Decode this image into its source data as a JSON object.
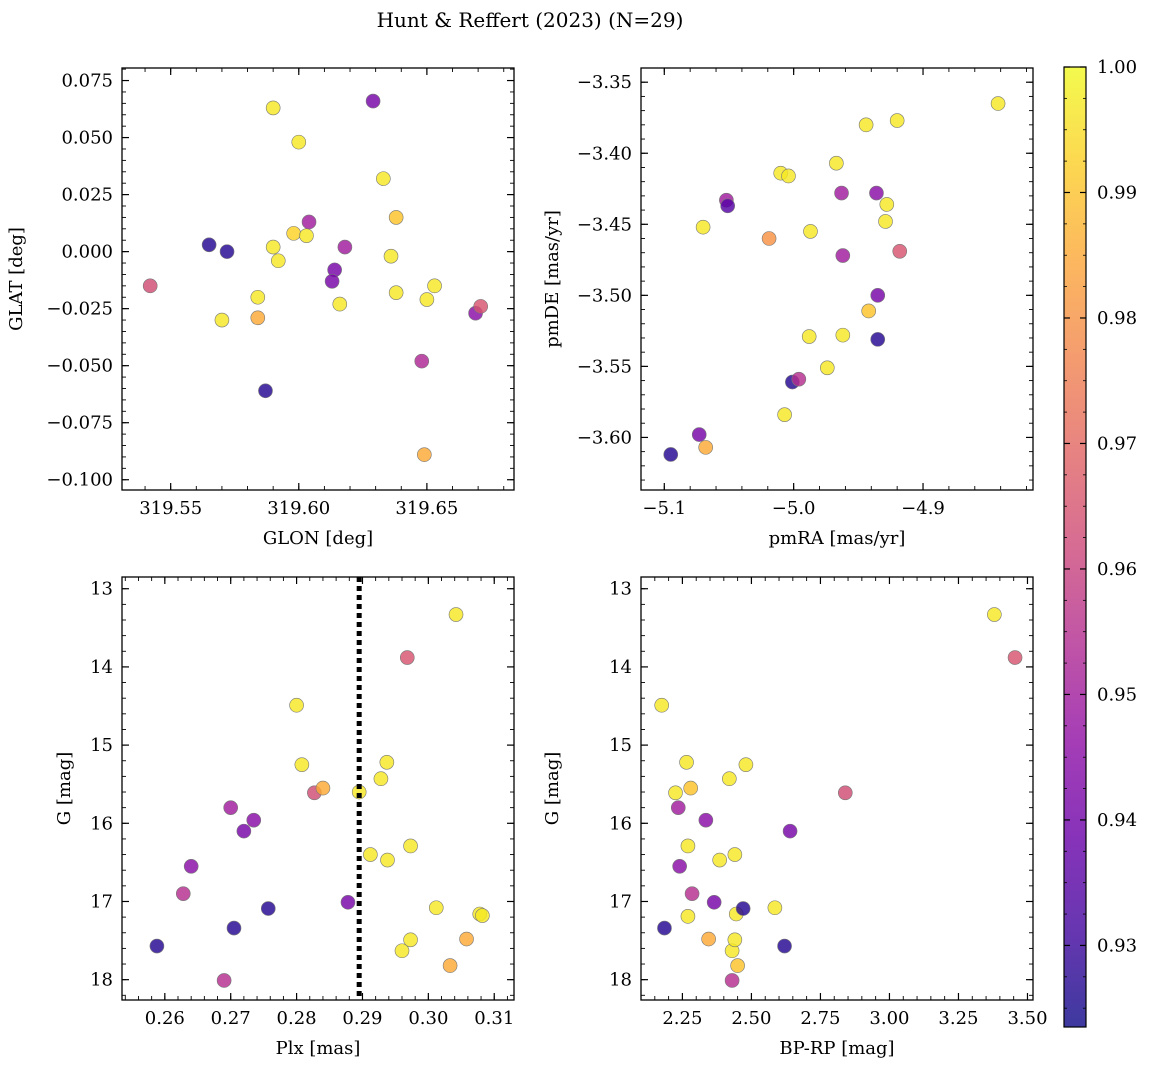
{
  "figure": {
    "title": "Hunt & Reffert (2023) (N=29)"
  },
  "colorbar": {
    "cmap": "plasma",
    "min": 0.9235,
    "max": 1.0,
    "ticks": [
      "0.93",
      "0.94",
      "0.95",
      "0.96",
      "0.97",
      "0.98",
      "0.99",
      "1.00"
    ]
  },
  "chart_data": [
    {
      "type": "scatter",
      "xlabel": "GLON [deg]",
      "ylabel": "GLAT [deg]",
      "xlim": [
        319.531,
        319.684
      ],
      "ylim": [
        -0.1045,
        0.0805
      ],
      "y_inverted": false,
      "xticks": [
        "319.55",
        "319.60",
        "319.65"
      ],
      "yticks": [
        "0.075",
        "0.050",
        "0.025",
        "0.000",
        "−0.025",
        "−0.050",
        "−0.075",
        "−0.100"
      ],
      "points": [
        {
          "x": 319.542,
          "y": -0.015,
          "c": 0.963
        },
        {
          "x": 319.565,
          "y": 0.003,
          "c": 0.927
        },
        {
          "x": 319.572,
          "y": 0.0,
          "c": 0.927
        },
        {
          "x": 319.57,
          "y": -0.03,
          "c": 0.997
        },
        {
          "x": 319.584,
          "y": -0.02,
          "c": 0.997
        },
        {
          "x": 319.584,
          "y": -0.029,
          "c": 0.985
        },
        {
          "x": 319.587,
          "y": -0.061,
          "c": 0.927
        },
        {
          "x": 319.59,
          "y": 0.063,
          "c": 0.997
        },
        {
          "x": 319.59,
          "y": 0.002,
          "c": 0.997
        },
        {
          "x": 319.592,
          "y": -0.004,
          "c": 0.997
        },
        {
          "x": 319.598,
          "y": 0.008,
          "c": 0.993
        },
        {
          "x": 319.6,
          "y": 0.048,
          "c": 0.997
        },
        {
          "x": 319.603,
          "y": 0.007,
          "c": 0.997
        },
        {
          "x": 319.604,
          "y": 0.013,
          "c": 0.95
        },
        {
          "x": 319.614,
          "y": -0.008,
          "c": 0.941
        },
        {
          "x": 319.613,
          "y": -0.013,
          "c": 0.941
        },
        {
          "x": 319.616,
          "y": -0.023,
          "c": 0.997
        },
        {
          "x": 319.618,
          "y": 0.002,
          "c": 0.95
        },
        {
          "x": 319.629,
          "y": 0.066,
          "c": 0.941
        },
        {
          "x": 319.633,
          "y": 0.032,
          "c": 0.997
        },
        {
          "x": 319.636,
          "y": -0.002,
          "c": 0.997
        },
        {
          "x": 319.638,
          "y": 0.015,
          "c": 0.99
        },
        {
          "x": 319.638,
          "y": -0.018,
          "c": 0.997
        },
        {
          "x": 319.648,
          "y": -0.048,
          "c": 0.953
        },
        {
          "x": 319.65,
          "y": -0.021,
          "c": 0.997
        },
        {
          "x": 319.649,
          "y": -0.089,
          "c": 0.985
        },
        {
          "x": 319.653,
          "y": -0.015,
          "c": 0.997
        },
        {
          "x": 319.669,
          "y": -0.027,
          "c": 0.945
        },
        {
          "x": 319.671,
          "y": -0.024,
          "c": 0.965
        }
      ]
    },
    {
      "type": "scatter",
      "xlabel": "pmRA [mas/yr]",
      "ylabel": "pmDE [mas/yr]",
      "xlim": [
        -5.118,
        -4.815
      ],
      "ylim": [
        -3.637,
        -3.34
      ],
      "y_inverted": false,
      "xticks": [
        "−5.1",
        "−5.0",
        "−4.9"
      ],
      "yticks": [
        "−3.35",
        "−3.40",
        "−3.45",
        "−3.50",
        "−3.55",
        "−3.60"
      ],
      "points": [
        {
          "x": -5.095,
          "y": -3.612,
          "c": 0.927
        },
        {
          "x": -5.073,
          "y": -3.598,
          "c": 0.941
        },
        {
          "x": -5.068,
          "y": -3.607,
          "c": 0.985
        },
        {
          "x": -5.07,
          "y": -3.452,
          "c": 0.997
        },
        {
          "x": -5.052,
          "y": -3.433,
          "c": 0.95
        },
        {
          "x": -5.051,
          "y": -3.437,
          "c": 0.935
        },
        {
          "x": -5.019,
          "y": -3.46,
          "c": 0.98
        },
        {
          "x": -5.01,
          "y": -3.414,
          "c": 0.997
        },
        {
          "x": -5.004,
          "y": -3.416,
          "c": 0.997
        },
        {
          "x": -5.007,
          "y": -3.584,
          "c": 0.997
        },
        {
          "x": -5.001,
          "y": -3.561,
          "c": 0.927
        },
        {
          "x": -4.996,
          "y": -3.559,
          "c": 0.955
        },
        {
          "x": -4.987,
          "y": -3.455,
          "c": 0.997
        },
        {
          "x": -4.988,
          "y": -3.529,
          "c": 0.997
        },
        {
          "x": -4.974,
          "y": -3.551,
          "c": 0.997
        },
        {
          "x": -4.967,
          "y": -3.407,
          "c": 0.997
        },
        {
          "x": -4.963,
          "y": -3.428,
          "c": 0.95
        },
        {
          "x": -4.962,
          "y": -3.472,
          "c": 0.95
        },
        {
          "x": -4.962,
          "y": -3.528,
          "c": 0.997
        },
        {
          "x": -4.944,
          "y": -3.38,
          "c": 0.997
        },
        {
          "x": -4.942,
          "y": -3.511,
          "c": 0.99
        },
        {
          "x": -4.936,
          "y": -3.428,
          "c": 0.945
        },
        {
          "x": -4.935,
          "y": -3.5,
          "c": 0.941
        },
        {
          "x": -4.935,
          "y": -3.531,
          "c": 0.927
        },
        {
          "x": -4.929,
          "y": -3.448,
          "c": 0.997
        },
        {
          "x": -4.928,
          "y": -3.436,
          "c": 0.997
        },
        {
          "x": -4.92,
          "y": -3.377,
          "c": 0.997
        },
        {
          "x": -4.918,
          "y": -3.469,
          "c": 0.965
        },
        {
          "x": -4.842,
          "y": -3.365,
          "c": 0.997
        }
      ]
    },
    {
      "type": "scatter",
      "xlabel": "Plx [mas]",
      "ylabel": "G [mag]",
      "xlim": [
        0.2535,
        0.313
      ],
      "ylim": [
        12.85,
        18.26
      ],
      "y_inverted": true,
      "vline": 0.2895,
      "xticks": [
        "0.26",
        "0.27",
        "0.28",
        "0.29",
        "0.30",
        "0.31"
      ],
      "yticks": [
        "13",
        "14",
        "15",
        "16",
        "17",
        "18"
      ],
      "points": [
        {
          "x": 0.2588,
          "y": 17.57,
          "c": 0.927
        },
        {
          "x": 0.2628,
          "y": 16.9,
          "c": 0.955
        },
        {
          "x": 0.264,
          "y": 16.55,
          "c": 0.945
        },
        {
          "x": 0.269,
          "y": 18.01,
          "c": 0.955
        },
        {
          "x": 0.27,
          "y": 15.8,
          "c": 0.95
        },
        {
          "x": 0.2705,
          "y": 17.34,
          "c": 0.927
        },
        {
          "x": 0.272,
          "y": 16.1,
          "c": 0.941
        },
        {
          "x": 0.2735,
          "y": 15.96,
          "c": 0.945
        },
        {
          "x": 0.2757,
          "y": 17.09,
          "c": 0.927
        },
        {
          "x": 0.28,
          "y": 14.49,
          "c": 0.997
        },
        {
          "x": 0.2808,
          "y": 15.25,
          "c": 0.997
        },
        {
          "x": 0.2827,
          "y": 15.61,
          "c": 0.963
        },
        {
          "x": 0.284,
          "y": 15.55,
          "c": 0.985
        },
        {
          "x": 0.2878,
          "y": 17.01,
          "c": 0.941
        },
        {
          "x": 0.2895,
          "y": 15.6,
          "c": 0.997
        },
        {
          "x": 0.2912,
          "y": 16.4,
          "c": 0.997
        },
        {
          "x": 0.2928,
          "y": 15.43,
          "c": 0.997
        },
        {
          "x": 0.2937,
          "y": 15.22,
          "c": 0.997
        },
        {
          "x": 0.2938,
          "y": 16.47,
          "c": 0.997
        },
        {
          "x": 0.2968,
          "y": 13.88,
          "c": 0.965
        },
        {
          "x": 0.296,
          "y": 17.63,
          "c": 0.997
        },
        {
          "x": 0.2973,
          "y": 16.29,
          "c": 0.997
        },
        {
          "x": 0.2973,
          "y": 17.49,
          "c": 0.997
        },
        {
          "x": 0.3012,
          "y": 17.08,
          "c": 0.997
        },
        {
          "x": 0.3033,
          "y": 17.82,
          "c": 0.985
        },
        {
          "x": 0.3042,
          "y": 13.33,
          "c": 0.997
        },
        {
          "x": 0.3058,
          "y": 17.48,
          "c": 0.985
        },
        {
          "x": 0.3078,
          "y": 17.16,
          "c": 0.997
        },
        {
          "x": 0.3082,
          "y": 17.18,
          "c": 0.997
        }
      ]
    },
    {
      "type": "scatter",
      "xlabel": "BP-RP [mag]",
      "ylabel": "G [mag]",
      "xlim": [
        2.1,
        3.52
      ],
      "ylim": [
        12.85,
        18.26
      ],
      "y_inverted": true,
      "xticks": [
        "2.25",
        "2.50",
        "2.75",
        "3.00",
        "3.25",
        "3.50"
      ],
      "yticks": [
        "13",
        "14",
        "15",
        "16",
        "17",
        "18"
      ],
      "points": [
        {
          "x": 2.175,
          "y": 14.49,
          "c": 0.997
        },
        {
          "x": 2.185,
          "y": 17.34,
          "c": 0.927
        },
        {
          "x": 2.225,
          "y": 15.61,
          "c": 0.997
        },
        {
          "x": 2.235,
          "y": 15.8,
          "c": 0.95
        },
        {
          "x": 2.24,
          "y": 16.55,
          "c": 0.945
        },
        {
          "x": 2.265,
          "y": 15.22,
          "c": 0.997
        },
        {
          "x": 2.27,
          "y": 16.29,
          "c": 0.997
        },
        {
          "x": 2.27,
          "y": 17.19,
          "c": 0.997
        },
        {
          "x": 2.28,
          "y": 15.55,
          "c": 0.99
        },
        {
          "x": 2.285,
          "y": 16.9,
          "c": 0.955
        },
        {
          "x": 2.335,
          "y": 15.96,
          "c": 0.945
        },
        {
          "x": 2.345,
          "y": 17.48,
          "c": 0.985
        },
        {
          "x": 2.365,
          "y": 17.01,
          "c": 0.941
        },
        {
          "x": 2.385,
          "y": 16.47,
          "c": 0.997
        },
        {
          "x": 2.42,
          "y": 15.43,
          "c": 0.997
        },
        {
          "x": 2.43,
          "y": 18.01,
          "c": 0.955
        },
        {
          "x": 2.43,
          "y": 17.63,
          "c": 0.997
        },
        {
          "x": 2.44,
          "y": 16.4,
          "c": 0.997
        },
        {
          "x": 2.44,
          "y": 17.49,
          "c": 0.997
        },
        {
          "x": 2.445,
          "y": 17.16,
          "c": 0.997
        },
        {
          "x": 2.45,
          "y": 17.82,
          "c": 0.99
        },
        {
          "x": 2.47,
          "y": 17.09,
          "c": 0.927
        },
        {
          "x": 2.48,
          "y": 15.25,
          "c": 0.997
        },
        {
          "x": 2.585,
          "y": 17.08,
          "c": 0.997
        },
        {
          "x": 2.62,
          "y": 17.57,
          "c": 0.927
        },
        {
          "x": 2.64,
          "y": 16.1,
          "c": 0.941
        },
        {
          "x": 2.84,
          "y": 15.61,
          "c": 0.963
        },
        {
          "x": 3.38,
          "y": 13.33,
          "c": 0.997
        },
        {
          "x": 3.455,
          "y": 13.88,
          "c": 0.965
        }
      ]
    }
  ]
}
